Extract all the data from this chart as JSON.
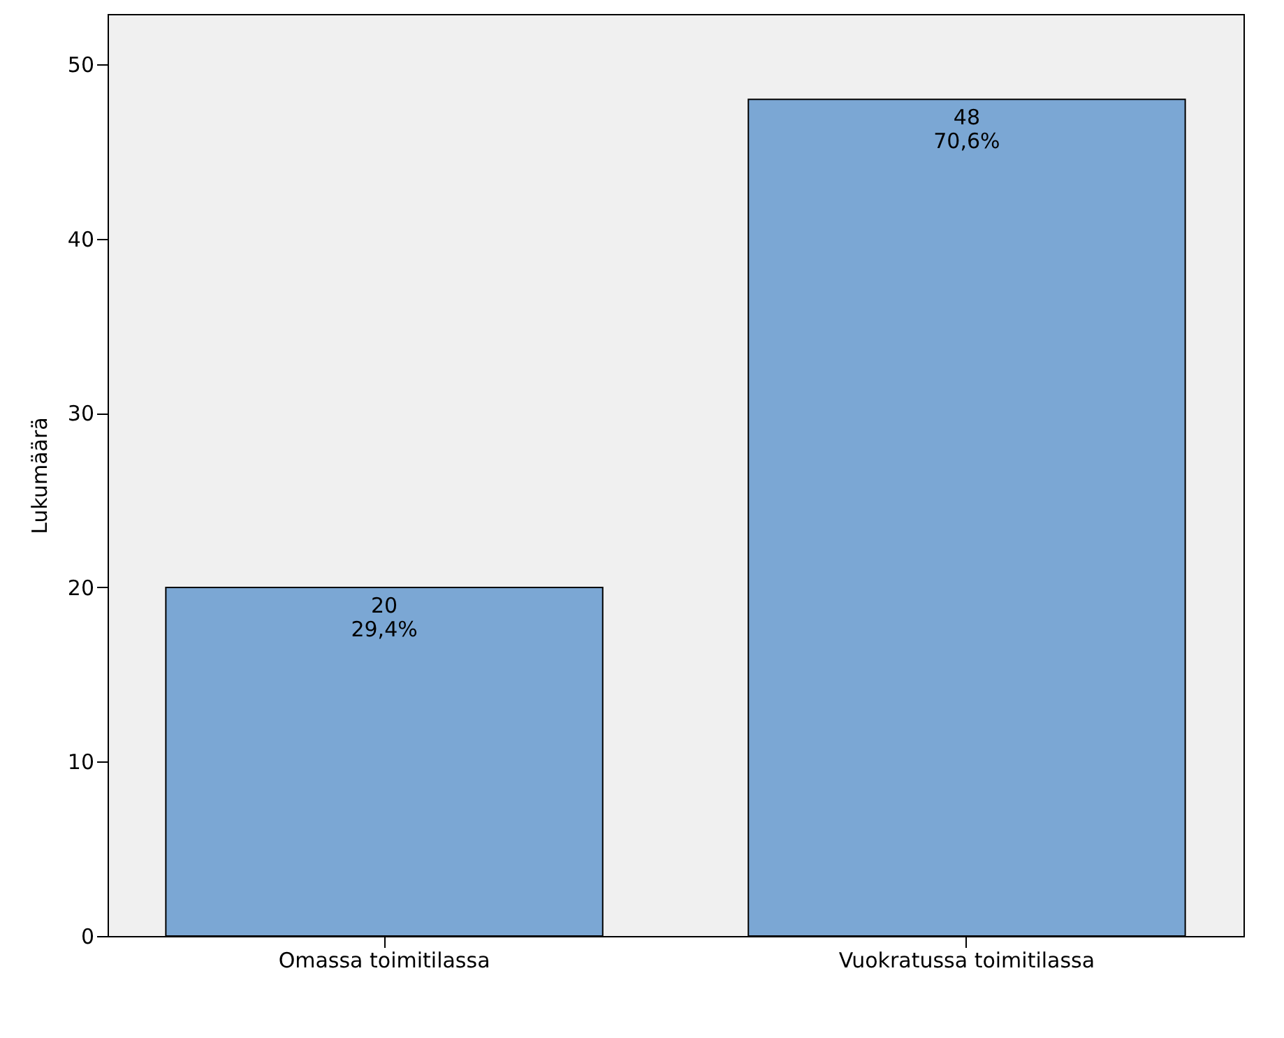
{
  "chart_data": {
    "type": "bar",
    "ylabel": "Lukumäärä",
    "categories": [
      "Omassa toimitilassa",
      "Vuokratussa toimitilassa"
    ],
    "values": [
      20,
      48
    ],
    "color": "#7ba7d4",
    "value_labels": [
      "20\n29,4%",
      "48\n70,6%"
    ],
    "ylim": [
      0,
      52.9
    ],
    "yticks": [
      0,
      10,
      20,
      30,
      40,
      50
    ],
    "grid": false
  }
}
